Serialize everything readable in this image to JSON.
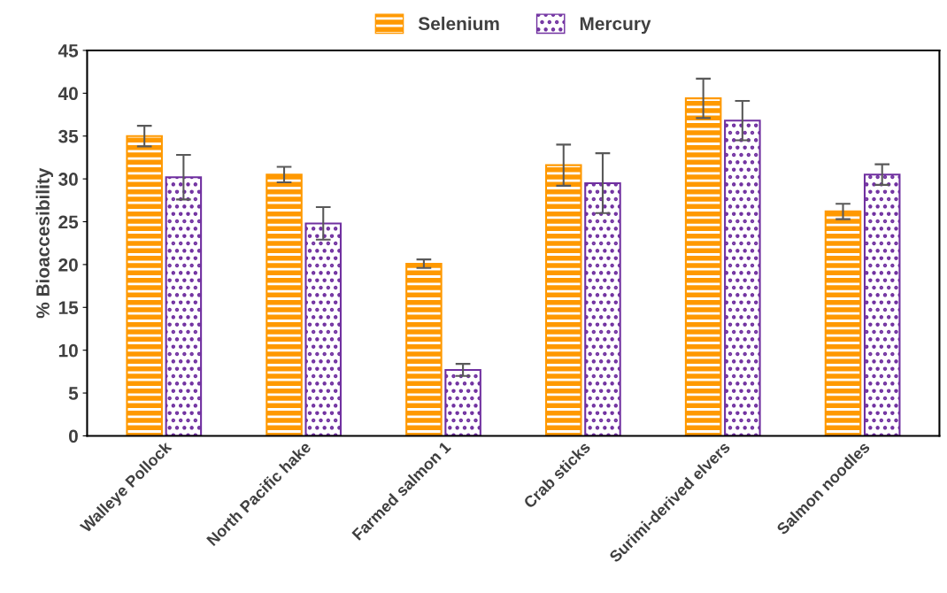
{
  "chart_data": {
    "type": "bar",
    "ylabel": "% Bioaccesibility",
    "categories": [
      "Walleye Pollock",
      "North Pacific hake",
      "Farmed salmon 1",
      "Crab sticks",
      "Surimi-derived elvers",
      "Salmon noodles"
    ],
    "series": [
      {
        "name": "Selenium",
        "color": "#ff9900",
        "values": [
          35.0,
          30.5,
          20.1,
          31.6,
          39.4,
          26.2
        ],
        "errors": [
          1.2,
          0.9,
          0.5,
          2.4,
          2.3,
          0.9
        ]
      },
      {
        "name": "Mercury",
        "color": "#7030a0",
        "values": [
          30.2,
          24.8,
          7.7,
          29.5,
          36.8,
          30.5
        ],
        "errors": [
          2.6,
          1.9,
          0.7,
          3.5,
          2.3,
          1.2
        ]
      }
    ],
    "ylim": [
      0,
      45
    ],
    "yticks": [
      0,
      5,
      10,
      15,
      20,
      25,
      30,
      35,
      40,
      45
    ],
    "grid": false,
    "legend": "top"
  }
}
